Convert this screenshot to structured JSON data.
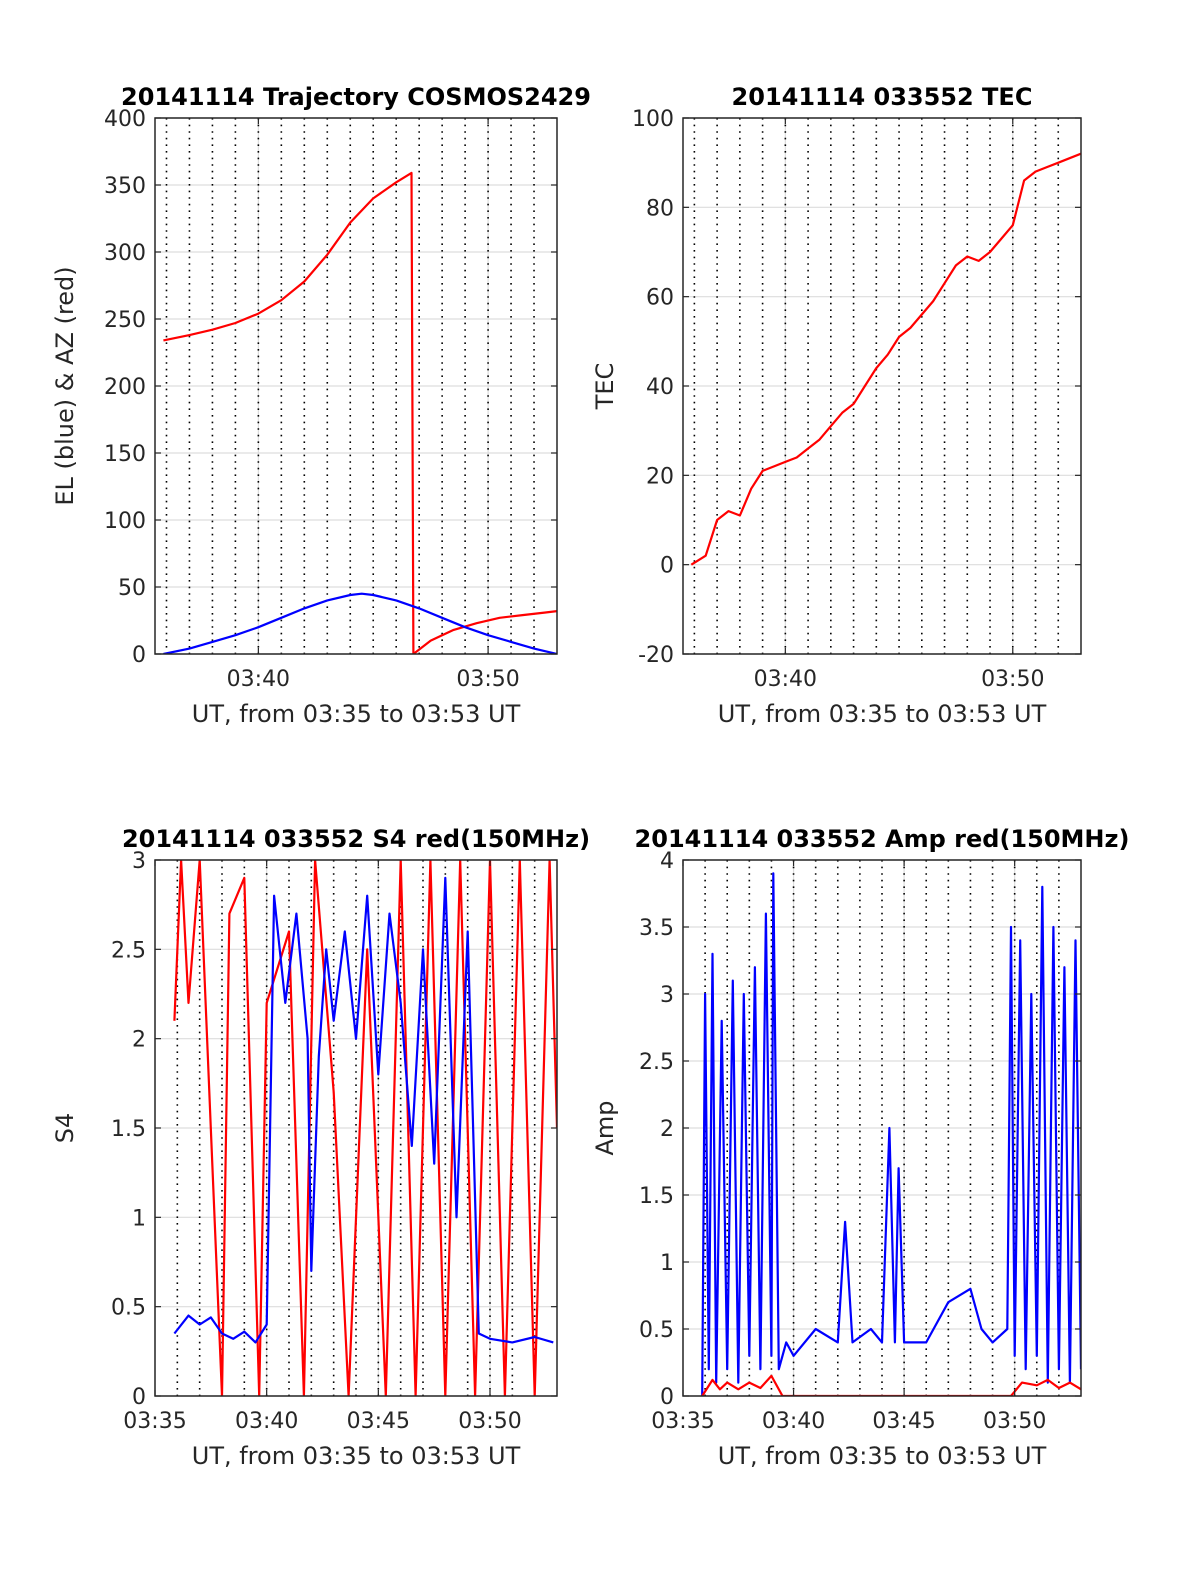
{
  "chart_data": [
    {
      "type": "line",
      "title": "20141114 Trajectory COSMOS2429",
      "xlabel": "UT, from 03:35 to 03:53 UT",
      "ylabel": "EL (blue) & AZ (red)",
      "xlim": [
        "03:35:30",
        "03:53:00"
      ],
      "ylim": [
        0,
        400
      ],
      "xticks": [
        "03:40",
        "03:50"
      ],
      "yticks": [
        "0",
        "50",
        "100",
        "150",
        "200",
        "250",
        "300",
        "350",
        "400"
      ],
      "grid": true,
      "series": [
        {
          "color": "#ff0000",
          "points": [
            [
              "03:35:52",
              234
            ],
            [
              "03:37:00",
              238
            ],
            [
              "03:38:00",
              242
            ],
            [
              "03:39:00",
              247
            ],
            [
              "03:40:00",
              254
            ],
            [
              "03:41:00",
              264
            ],
            [
              "03:42:00",
              278
            ],
            [
              "03:43:00",
              298
            ],
            [
              "03:44:00",
              322
            ],
            [
              "03:45:00",
              340
            ],
            [
              "03:46:00",
              352
            ],
            [
              "03:46:40",
              359
            ],
            [
              "03:46:45",
              0
            ],
            [
              "03:47:30",
              10
            ],
            [
              "03:48:30",
              18
            ],
            [
              "03:49:30",
              23
            ],
            [
              "03:50:30",
              27
            ],
            [
              "03:51:30",
              29
            ],
            [
              "03:52:30",
              31
            ],
            [
              "03:53:00",
              32
            ]
          ]
        },
        {
          "color": "#0000ff",
          "points": [
            [
              "03:35:52",
              0
            ],
            [
              "03:37:00",
              4
            ],
            [
              "03:38:00",
              9
            ],
            [
              "03:39:00",
              14
            ],
            [
              "03:40:00",
              20
            ],
            [
              "03:41:00",
              27
            ],
            [
              "03:42:00",
              34
            ],
            [
              "03:43:00",
              40
            ],
            [
              "03:44:00",
              44
            ],
            [
              "03:44:30",
              45
            ],
            [
              "03:45:00",
              44
            ],
            [
              "03:46:00",
              40
            ],
            [
              "03:47:00",
              34
            ],
            [
              "03:48:00",
              27
            ],
            [
              "03:49:00",
              20
            ],
            [
              "03:50:00",
              14
            ],
            [
              "03:51:00",
              9
            ],
            [
              "03:52:00",
              4
            ],
            [
              "03:53:00",
              0
            ]
          ]
        }
      ]
    },
    {
      "type": "line",
      "title": "20141114 033552 TEC",
      "xlabel": "UT, from 03:35 to 03:53 UT",
      "ylabel": "TEC",
      "xlim": [
        "03:35:30",
        "03:53:00"
      ],
      "ylim": [
        -20,
        100
      ],
      "xticks": [
        "03:40",
        "03:50"
      ],
      "yticks": [
        "-20",
        "0",
        "20",
        "40",
        "60",
        "80",
        "100"
      ],
      "grid": true,
      "series": [
        {
          "color": "#ff0000",
          "points": [
            [
              "03:35:52",
              0
            ],
            [
              "03:36:30",
              2
            ],
            [
              "03:37:00",
              10
            ],
            [
              "03:37:30",
              12
            ],
            [
              "03:38:00",
              11
            ],
            [
              "03:38:30",
              17
            ],
            [
              "03:39:00",
              21
            ],
            [
              "03:39:30",
              22
            ],
            [
              "03:40:00",
              23
            ],
            [
              "03:40:30",
              24
            ],
            [
              "03:41:00",
              26
            ],
            [
              "03:41:30",
              28
            ],
            [
              "03:42:00",
              31
            ],
            [
              "03:42:30",
              34
            ],
            [
              "03:43:00",
              36
            ],
            [
              "03:43:30",
              40
            ],
            [
              "03:44:00",
              44
            ],
            [
              "03:44:30",
              47
            ],
            [
              "03:45:00",
              51
            ],
            [
              "03:45:30",
              53
            ],
            [
              "03:46:00",
              56
            ],
            [
              "03:46:30",
              59
            ],
            [
              "03:47:00",
              63
            ],
            [
              "03:47:30",
              67
            ],
            [
              "03:48:00",
              69
            ],
            [
              "03:48:30",
              68
            ],
            [
              "03:49:00",
              70
            ],
            [
              "03:49:30",
              73
            ],
            [
              "03:50:00",
              76
            ],
            [
              "03:50:30",
              86
            ],
            [
              "03:51:00",
              88
            ],
            [
              "03:51:30",
              89
            ],
            [
              "03:52:00",
              90
            ],
            [
              "03:52:30",
              91
            ],
            [
              "03:53:00",
              92
            ]
          ]
        }
      ]
    },
    {
      "type": "line",
      "title": "20141114 033552 S4 red(150MHz)",
      "xlabel": "UT, from 03:35 to 03:53 UT",
      "ylabel": "S4",
      "xlim": [
        "03:35:00",
        "03:53:00"
      ],
      "ylim": [
        0,
        3
      ],
      "xticks": [
        "03:35",
        "03:40",
        "03:45",
        "03:50"
      ],
      "yticks": [
        "0",
        "0.5",
        "1",
        "1.5",
        "2",
        "2.5",
        "3"
      ],
      "grid": true,
      "series": [
        {
          "color": "#ff0000",
          "points": [
            [
              "03:35:52",
              2.1
            ],
            [
              "03:36:10",
              3.0
            ],
            [
              "03:36:30",
              2.2
            ],
            [
              "03:37:00",
              3.0
            ],
            [
              "03:37:30",
              1.5
            ],
            [
              "03:38:00",
              0.0
            ],
            [
              "03:38:20",
              2.7
            ],
            [
              "03:39:00",
              2.9
            ],
            [
              "03:39:40",
              0.0
            ],
            [
              "03:40:00",
              2.2
            ],
            [
              "03:41:00",
              2.6
            ],
            [
              "03:41:40",
              0.0
            ],
            [
              "03:42:10",
              3.0
            ],
            [
              "03:43:00",
              1.7
            ],
            [
              "03:43:40",
              0.0
            ],
            [
              "03:44:30",
              2.5
            ],
            [
              "03:45:20",
              0.0
            ],
            [
              "03:46:00",
              3.0
            ],
            [
              "03:46:40",
              0.0
            ],
            [
              "03:47:20",
              3.0
            ],
            [
              "03:48:00",
              0.0
            ],
            [
              "03:48:40",
              3.0
            ],
            [
              "03:49:20",
              0.0
            ],
            [
              "03:50:00",
              3.0
            ],
            [
              "03:50:40",
              0.0
            ],
            [
              "03:51:20",
              3.0
            ],
            [
              "03:52:00",
              0.0
            ],
            [
              "03:52:40",
              3.0
            ],
            [
              "03:53:00",
              1.5
            ]
          ]
        },
        {
          "color": "#0000ff",
          "points": [
            [
              "03:35:52",
              0.35
            ],
            [
              "03:36:30",
              0.45
            ],
            [
              "03:37:00",
              0.4
            ],
            [
              "03:37:30",
              0.44
            ],
            [
              "03:38:00",
              0.35
            ],
            [
              "03:38:30",
              0.32
            ],
            [
              "03:39:00",
              0.36
            ],
            [
              "03:39:30",
              0.3
            ],
            [
              "03:40:00",
              0.4
            ],
            [
              "03:40:20",
              2.8
            ],
            [
              "03:40:50",
              2.2
            ],
            [
              "03:41:20",
              2.7
            ],
            [
              "03:41:50",
              2.0
            ],
            [
              "03:42:00",
              0.7
            ],
            [
              "03:42:20",
              1.9
            ],
            [
              "03:42:40",
              2.5
            ],
            [
              "03:43:00",
              2.1
            ],
            [
              "03:43:30",
              2.6
            ],
            [
              "03:44:00",
              2.0
            ],
            [
              "03:44:30",
              2.8
            ],
            [
              "03:45:00",
              1.8
            ],
            [
              "03:45:30",
              2.7
            ],
            [
              "03:46:00",
              2.2
            ],
            [
              "03:46:30",
              1.4
            ],
            [
              "03:47:00",
              2.5
            ],
            [
              "03:47:30",
              1.3
            ],
            [
              "03:48:00",
              2.9
            ],
            [
              "03:48:30",
              1.0
            ],
            [
              "03:49:00",
              2.6
            ],
            [
              "03:49:30",
              0.35
            ],
            [
              "03:50:00",
              0.32
            ],
            [
              "03:51:00",
              0.3
            ],
            [
              "03:52:00",
              0.33
            ],
            [
              "03:52:50",
              0.3
            ]
          ]
        }
      ]
    },
    {
      "type": "line",
      "title": "20141114 033552 Amp red(150MHz)",
      "xlabel": "UT, from 03:35 to 03:53 UT",
      "ylabel": "Amp",
      "xlim": [
        "03:35:00",
        "03:53:00"
      ],
      "ylim": [
        0,
        4
      ],
      "xticks": [
        "03:35",
        "03:40",
        "03:45",
        "03:50"
      ],
      "yticks": [
        "0",
        "0.5",
        "1",
        "1.5",
        "2",
        "2.5",
        "3",
        "3.5",
        "4"
      ],
      "grid": true,
      "series": [
        {
          "color": "#0000ff",
          "points": [
            [
              "03:35:52",
              0.0
            ],
            [
              "03:36:00",
              3.0
            ],
            [
              "03:36:10",
              0.2
            ],
            [
              "03:36:20",
              3.3
            ],
            [
              "03:36:30",
              0.1
            ],
            [
              "03:36:45",
              2.8
            ],
            [
              "03:37:00",
              0.2
            ],
            [
              "03:37:15",
              3.1
            ],
            [
              "03:37:30",
              0.1
            ],
            [
              "03:37:45",
              3.0
            ],
            [
              "03:38:00",
              0.3
            ],
            [
              "03:38:15",
              3.2
            ],
            [
              "03:38:30",
              0.2
            ],
            [
              "03:38:45",
              3.6
            ],
            [
              "03:39:00",
              0.3
            ],
            [
              "03:39:05",
              3.9
            ],
            [
              "03:39:20",
              0.2
            ],
            [
              "03:39:40",
              0.4
            ],
            [
              "03:40:00",
              0.3
            ],
            [
              "03:41:00",
              0.5
            ],
            [
              "03:42:00",
              0.4
            ],
            [
              "03:42:20",
              1.3
            ],
            [
              "03:42:40",
              0.4
            ],
            [
              "03:43:30",
              0.5
            ],
            [
              "03:44:00",
              0.4
            ],
            [
              "03:44:20",
              2.0
            ],
            [
              "03:44:35",
              0.4
            ],
            [
              "03:44:45",
              1.7
            ],
            [
              "03:45:00",
              0.4
            ],
            [
              "03:46:00",
              0.4
            ],
            [
              "03:47:00",
              0.7
            ],
            [
              "03:48:00",
              0.8
            ],
            [
              "03:48:30",
              0.5
            ],
            [
              "03:49:00",
              0.4
            ],
            [
              "03:49:40",
              0.5
            ],
            [
              "03:49:50",
              3.5
            ],
            [
              "03:50:00",
              0.3
            ],
            [
              "03:50:15",
              3.4
            ],
            [
              "03:50:30",
              0.2
            ],
            [
              "03:50:45",
              3.0
            ],
            [
              "03:51:00",
              0.3
            ],
            [
              "03:51:15",
              3.8
            ],
            [
              "03:51:30",
              0.1
            ],
            [
              "03:51:45",
              3.5
            ],
            [
              "03:52:00",
              0.2
            ],
            [
              "03:52:15",
              3.2
            ],
            [
              "03:52:30",
              0.1
            ],
            [
              "03:52:45",
              3.4
            ],
            [
              "03:53:00",
              0.2
            ]
          ]
        },
        {
          "color": "#ff0000",
          "points": [
            [
              "03:35:52",
              0.0
            ],
            [
              "03:36:20",
              0.12
            ],
            [
              "03:36:40",
              0.05
            ],
            [
              "03:37:00",
              0.1
            ],
            [
              "03:37:30",
              0.05
            ],
            [
              "03:38:00",
              0.1
            ],
            [
              "03:38:30",
              0.06
            ],
            [
              "03:39:00",
              0.15
            ],
            [
              "03:39:30",
              0.0
            ],
            [
              "03:49:50",
              0.0
            ],
            [
              "03:50:20",
              0.1
            ],
            [
              "03:51:00",
              0.08
            ],
            [
              "03:51:30",
              0.12
            ],
            [
              "03:52:00",
              0.06
            ],
            [
              "03:52:30",
              0.1
            ],
            [
              "03:53:00",
              0.05
            ]
          ]
        }
      ]
    }
  ]
}
